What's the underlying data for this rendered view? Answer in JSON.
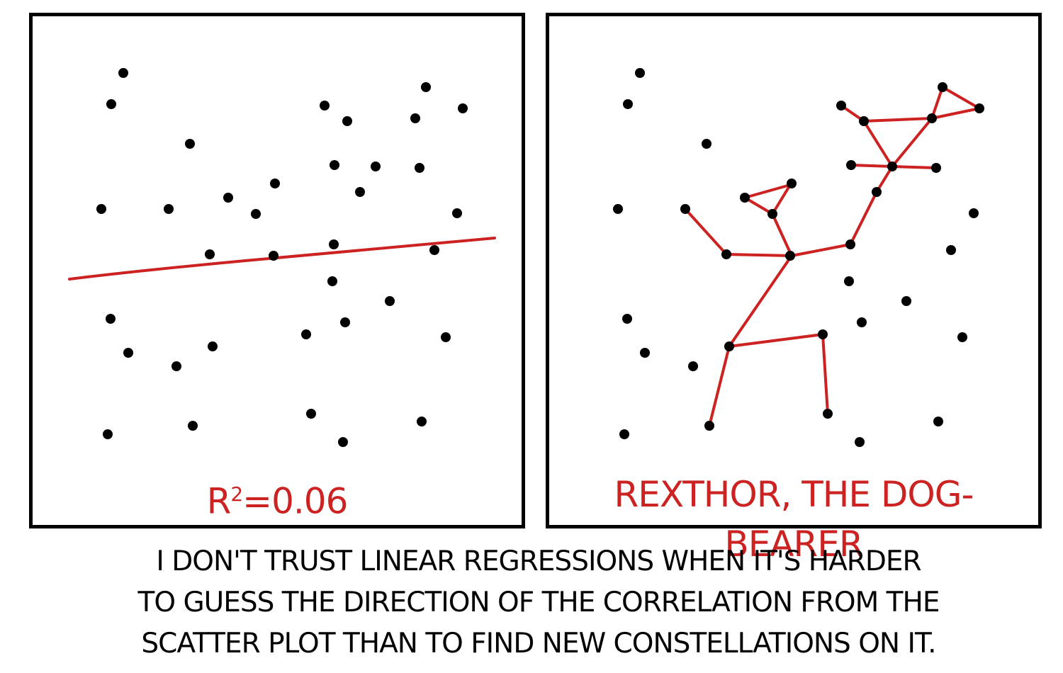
{
  "comic": {
    "left_panel": {
      "label": "R²=0.06",
      "label_parts": {
        "base": "R",
        "sup": "2",
        "rest": "=0.06"
      }
    },
    "right_panel": {
      "label": "REXTHOR, THE DOG-BEARER"
    },
    "caption_lines": [
      "I DON'T TRUST LINEAR REGRESSIONS WHEN IT'S HARDER",
      "TO GUESS THE DIRECTION OF THE CORRELATION FROM THE",
      "SCATTER PLOT THAN TO FIND NEW CONSTELLATIONS ON IT."
    ]
  },
  "colors": {
    "ink": "#000000",
    "accent": "#cc2222",
    "background": "#ffffff"
  }
}
